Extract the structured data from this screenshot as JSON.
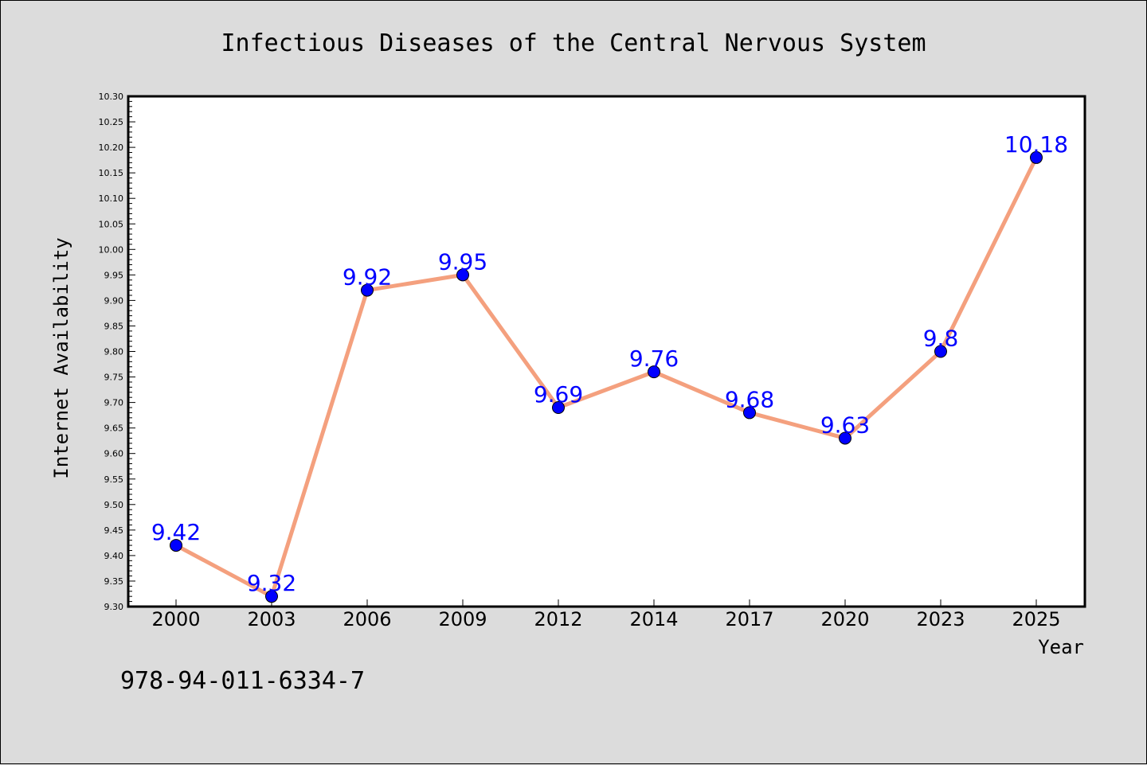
{
  "chart_data": {
    "type": "line",
    "title": "Infectious Diseases of the Central Nervous System",
    "xlabel": "Year",
    "ylabel": "Internet Availability",
    "categories": [
      "2000",
      "2003",
      "2006",
      "2009",
      "2012",
      "2014",
      "2017",
      "2020",
      "2023",
      "2025"
    ],
    "series": [
      {
        "values": [
          9.42,
          9.32,
          9.92,
          9.95,
          9.69,
          9.76,
          9.68,
          9.63,
          9.8,
          10.18
        ],
        "data_labels": [
          "9.42",
          "9.32",
          "9.92",
          "9.95",
          "9.69",
          "9.76",
          "9.68",
          "9.63",
          "9.8",
          "10.18"
        ]
      }
    ],
    "ylim": [
      9.3,
      10.3
    ],
    "yticks": [
      "9.30",
      "9.35",
      "9.40",
      "9.45",
      "9.50",
      "9.55",
      "9.60",
      "9.65",
      "9.70",
      "9.75",
      "9.80",
      "9.85",
      "9.90",
      "9.95",
      "10.00",
      "10.05",
      "10.10",
      "10.15",
      "10.20",
      "10.25",
      "10.30"
    ],
    "grid": false,
    "legend": "none",
    "colors": {
      "line": "#f4a07e",
      "marker": "#0000ff",
      "data_label": "#0000ff",
      "background": "#dcdcdc",
      "plot_area": "#ffffff"
    }
  },
  "annotation": {
    "isbn": "978-94-011-6334-7"
  }
}
